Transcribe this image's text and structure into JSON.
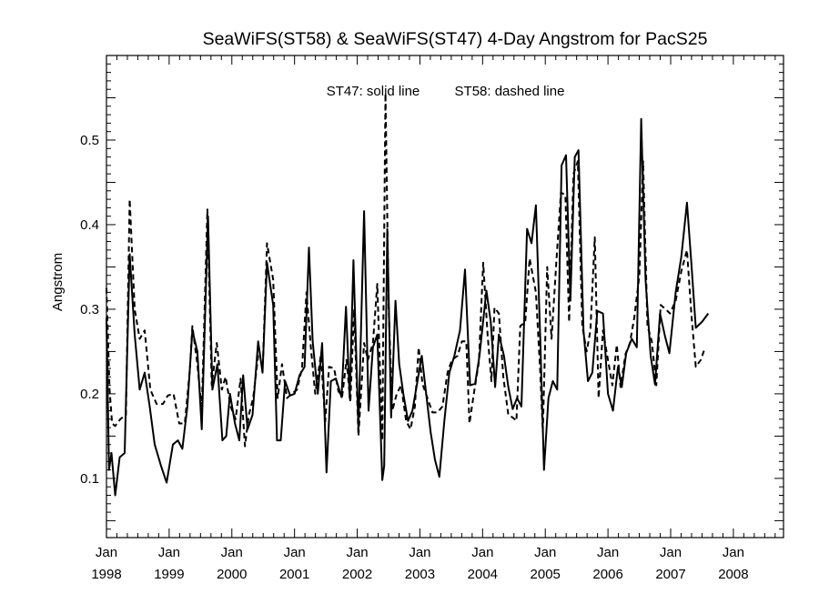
{
  "chart_data": {
    "type": "line",
    "title": "SeaWiFS(ST58) & SeaWiFS(ST47) 4-Day Angstrom for PacS25",
    "annotations": [
      "ST47: solid line",
      "ST58: dashed line"
    ],
    "ylabel": "Angstrom",
    "xlabel": "",
    "xlim": [
      1998.0,
      2008.8
    ],
    "ylim": [
      0.03,
      0.6
    ],
    "yticks": [
      0.1,
      0.2,
      0.3,
      0.4,
      0.5
    ],
    "xticks": [
      {
        "x": 1998,
        "month": "Jan",
        "year": "1998"
      },
      {
        "x": 1999,
        "month": "Jan",
        "year": "1999"
      },
      {
        "x": 2000,
        "month": "Jan",
        "year": "2000"
      },
      {
        "x": 2001,
        "month": "Jan",
        "year": "2001"
      },
      {
        "x": 2002,
        "month": "Jan",
        "year": "2002"
      },
      {
        "x": 2003,
        "month": "Jan",
        "year": "2003"
      },
      {
        "x": 2004,
        "month": "Jan",
        "year": "2004"
      },
      {
        "x": 2005,
        "month": "Jan",
        "year": "2005"
      },
      {
        "x": 2006,
        "month": "Jan",
        "year": "2006"
      },
      {
        "x": 2007,
        "month": "Jan",
        "year": "2007"
      },
      {
        "x": 2008,
        "month": "Jan",
        "year": "2008"
      }
    ],
    "grid": false,
    "series": [
      {
        "name": "ST47",
        "style": "solid",
        "color": "#000000",
        "points": [
          [
            1998.0,
            0.29
          ],
          [
            1998.04,
            0.11
          ],
          [
            1998.08,
            0.13
          ],
          [
            1998.14,
            0.08
          ],
          [
            1998.21,
            0.125
          ],
          [
            1998.29,
            0.13
          ],
          [
            1998.37,
            0.365
          ],
          [
            1998.45,
            0.27
          ],
          [
            1998.53,
            0.205
          ],
          [
            1998.61,
            0.225
          ],
          [
            1998.69,
            0.185
          ],
          [
            1998.77,
            0.14
          ],
          [
            1998.87,
            0.115
          ],
          [
            1998.96,
            0.095
          ],
          [
            1999.06,
            0.14
          ],
          [
            1999.14,
            0.145
          ],
          [
            1999.21,
            0.135
          ],
          [
            1999.29,
            0.185
          ],
          [
            1999.37,
            0.275
          ],
          [
            1999.45,
            0.25
          ],
          [
            1999.52,
            0.158
          ],
          [
            1999.62,
            0.41
          ],
          [
            1999.69,
            0.205
          ],
          [
            1999.77,
            0.235
          ],
          [
            1999.85,
            0.145
          ],
          [
            1999.91,
            0.15
          ],
          [
            1999.97,
            0.2
          ],
          [
            2000.05,
            0.165
          ],
          [
            2000.12,
            0.145
          ],
          [
            2000.18,
            0.222
          ],
          [
            2000.25,
            0.158
          ],
          [
            2000.33,
            0.175
          ],
          [
            2000.42,
            0.262
          ],
          [
            2000.49,
            0.225
          ],
          [
            2000.56,
            0.355
          ],
          [
            2000.66,
            0.305
          ],
          [
            2000.72,
            0.145
          ],
          [
            2000.78,
            0.145
          ],
          [
            2000.85,
            0.215
          ],
          [
            2000.93,
            0.198
          ],
          [
            2001.0,
            0.2
          ],
          [
            2001.08,
            0.222
          ],
          [
            2001.16,
            0.232
          ],
          [
            2001.23,
            0.373
          ],
          [
            2001.29,
            0.262
          ],
          [
            2001.37,
            0.2
          ],
          [
            2001.44,
            0.26
          ],
          [
            2001.51,
            0.107
          ],
          [
            2001.58,
            0.215
          ],
          [
            2001.66,
            0.218
          ],
          [
            2001.75,
            0.196
          ],
          [
            2001.82,
            0.303
          ],
          [
            2001.88,
            0.195
          ],
          [
            2001.94,
            0.358
          ],
          [
            2002.02,
            0.158
          ],
          [
            2002.11,
            0.416
          ],
          [
            2002.18,
            0.18
          ],
          [
            2002.25,
            0.255
          ],
          [
            2002.32,
            0.27
          ],
          [
            2002.4,
            0.098
          ],
          [
            2002.43,
            0.115
          ],
          [
            2002.48,
            0.395
          ],
          [
            2002.54,
            0.172
          ],
          [
            2002.61,
            0.31
          ],
          [
            2002.67,
            0.235
          ],
          [
            2002.74,
            0.198
          ],
          [
            2002.81,
            0.168
          ],
          [
            2002.88,
            0.18
          ],
          [
            2002.95,
            0.21
          ],
          [
            2003.03,
            0.245
          ],
          [
            2003.1,
            0.2
          ],
          [
            2003.17,
            0.155
          ],
          [
            2003.24,
            0.122
          ],
          [
            2003.31,
            0.102
          ],
          [
            2003.39,
            0.168
          ],
          [
            2003.47,
            0.225
          ],
          [
            2003.55,
            0.245
          ],
          [
            2003.64,
            0.275
          ],
          [
            2003.72,
            0.347
          ],
          [
            2003.8,
            0.21
          ],
          [
            2003.88,
            0.212
          ],
          [
            2003.95,
            0.245
          ],
          [
            2004.06,
            0.322
          ],
          [
            2004.13,
            0.285
          ],
          [
            2004.2,
            0.208
          ],
          [
            2004.26,
            0.27
          ],
          [
            2004.34,
            0.245
          ],
          [
            2004.41,
            0.208
          ],
          [
            2004.48,
            0.182
          ],
          [
            2004.55,
            0.195
          ],
          [
            2004.62,
            0.185
          ],
          [
            2004.71,
            0.395
          ],
          [
            2004.78,
            0.378
          ],
          [
            2004.85,
            0.423
          ],
          [
            2004.92,
            0.265
          ],
          [
            2004.98,
            0.11
          ],
          [
            2005.05,
            0.195
          ],
          [
            2005.12,
            0.215
          ],
          [
            2005.19,
            0.205
          ],
          [
            2005.26,
            0.47
          ],
          [
            2005.33,
            0.482
          ],
          [
            2005.4,
            0.31
          ],
          [
            2005.47,
            0.48
          ],
          [
            2005.53,
            0.488
          ],
          [
            2005.61,
            0.275
          ],
          [
            2005.68,
            0.215
          ],
          [
            2005.75,
            0.225
          ],
          [
            2005.83,
            0.298
          ],
          [
            2005.92,
            0.295
          ],
          [
            2006.0,
            0.2
          ],
          [
            2006.08,
            0.18
          ],
          [
            2006.16,
            0.232
          ],
          [
            2006.22,
            0.208
          ],
          [
            2006.29,
            0.248
          ],
          [
            2006.38,
            0.265
          ],
          [
            2006.46,
            0.255
          ],
          [
            2006.53,
            0.525
          ],
          [
            2006.6,
            0.335
          ],
          [
            2006.68,
            0.245
          ],
          [
            2006.75,
            0.211
          ],
          [
            2006.83,
            0.295
          ],
          [
            2006.91,
            0.268
          ],
          [
            2006.98,
            0.248
          ],
          [
            2007.08,
            0.32
          ],
          [
            2007.17,
            0.362
          ],
          [
            2007.26,
            0.426
          ],
          [
            2007.33,
            0.355
          ],
          [
            2007.4,
            0.278
          ],
          [
            2007.5,
            0.285
          ],
          [
            2007.6,
            0.295
          ]
        ]
      },
      {
        "name": "ST58",
        "style": "dashed",
        "color": "#000000",
        "points": [
          [
            1998.0,
            0.325
          ],
          [
            1998.05,
            0.205
          ],
          [
            1998.09,
            0.165
          ],
          [
            1998.14,
            0.162
          ],
          [
            1998.22,
            0.17
          ],
          [
            1998.31,
            0.175
          ],
          [
            1998.37,
            0.43
          ],
          [
            1998.45,
            0.3
          ],
          [
            1998.53,
            0.265
          ],
          [
            1998.61,
            0.275
          ],
          [
            1998.7,
            0.205
          ],
          [
            1998.8,
            0.188
          ],
          [
            1998.9,
            0.188
          ],
          [
            1998.98,
            0.198
          ],
          [
            1999.07,
            0.2
          ],
          [
            1999.16,
            0.165
          ],
          [
            1999.25,
            0.165
          ],
          [
            1999.33,
            0.228
          ],
          [
            1999.37,
            0.28
          ],
          [
            1999.45,
            0.235
          ],
          [
            1999.52,
            0.18
          ],
          [
            1999.61,
            0.418
          ],
          [
            1999.68,
            0.21
          ],
          [
            1999.76,
            0.26
          ],
          [
            1999.84,
            0.205
          ],
          [
            1999.9,
            0.22
          ],
          [
            1999.98,
            0.185
          ],
          [
            2000.06,
            0.17
          ],
          [
            2000.14,
            0.218
          ],
          [
            2000.21,
            0.138
          ],
          [
            2000.27,
            0.175
          ],
          [
            2000.34,
            0.195
          ],
          [
            2000.42,
            0.245
          ],
          [
            2000.5,
            0.245
          ],
          [
            2000.56,
            0.378
          ],
          [
            2000.66,
            0.335
          ],
          [
            2000.73,
            0.195
          ],
          [
            2000.8,
            0.235
          ],
          [
            2000.88,
            0.195
          ],
          [
            2000.96,
            0.2
          ],
          [
            2001.04,
            0.205
          ],
          [
            2001.12,
            0.23
          ],
          [
            2001.19,
            0.32
          ],
          [
            2001.26,
            0.255
          ],
          [
            2001.33,
            0.2
          ],
          [
            2001.42,
            0.246
          ],
          [
            2001.49,
            0.167
          ],
          [
            2001.55,
            0.232
          ],
          [
            2001.63,
            0.23
          ],
          [
            2001.7,
            0.203
          ],
          [
            2001.76,
            0.197
          ],
          [
            2001.83,
            0.24
          ],
          [
            2001.89,
            0.19
          ],
          [
            2001.95,
            0.3
          ],
          [
            2002.02,
            0.15
          ],
          [
            2002.11,
            0.26
          ],
          [
            2002.17,
            0.24
          ],
          [
            2002.25,
            0.26
          ],
          [
            2002.32,
            0.33
          ],
          [
            2002.4,
            0.145
          ],
          [
            2002.45,
            0.555
          ],
          [
            2002.5,
            0.305
          ],
          [
            2002.56,
            0.18
          ],
          [
            2002.63,
            0.2
          ],
          [
            2002.7,
            0.21
          ],
          [
            2002.78,
            0.168
          ],
          [
            2002.85,
            0.158
          ],
          [
            2002.92,
            0.185
          ],
          [
            2002.98,
            0.255
          ],
          [
            2003.04,
            0.212
          ],
          [
            2003.12,
            0.195
          ],
          [
            2003.2,
            0.178
          ],
          [
            2003.28,
            0.178
          ],
          [
            2003.36,
            0.185
          ],
          [
            2003.44,
            0.225
          ],
          [
            2003.51,
            0.24
          ],
          [
            2003.6,
            0.245
          ],
          [
            2003.67,
            0.262
          ],
          [
            2003.74,
            0.262
          ],
          [
            2003.79,
            0.165
          ],
          [
            2003.86,
            0.2
          ],
          [
            2003.94,
            0.237
          ],
          [
            2004.01,
            0.355
          ],
          [
            2004.08,
            0.27
          ],
          [
            2004.14,
            0.215
          ],
          [
            2004.19,
            0.302
          ],
          [
            2004.26,
            0.295
          ],
          [
            2004.33,
            0.22
          ],
          [
            2004.41,
            0.175
          ],
          [
            2004.48,
            0.172
          ],
          [
            2004.54,
            0.168
          ],
          [
            2004.6,
            0.28
          ],
          [
            2004.68,
            0.285
          ],
          [
            2004.75,
            0.36
          ],
          [
            2004.85,
            0.32
          ],
          [
            2004.92,
            0.225
          ],
          [
            2004.96,
            0.155
          ],
          [
            2005.03,
            0.35
          ],
          [
            2005.1,
            0.265
          ],
          [
            2005.18,
            0.36
          ],
          [
            2005.25,
            0.438
          ],
          [
            2005.32,
            0.435
          ],
          [
            2005.38,
            0.285
          ],
          [
            2005.45,
            0.46
          ],
          [
            2005.52,
            0.475
          ],
          [
            2005.59,
            0.28
          ],
          [
            2005.66,
            0.25
          ],
          [
            2005.72,
            0.275
          ],
          [
            2005.79,
            0.385
          ],
          [
            2005.85,
            0.195
          ],
          [
            2005.92,
            0.275
          ],
          [
            2006.0,
            0.24
          ],
          [
            2006.07,
            0.21
          ],
          [
            2006.14,
            0.258
          ],
          [
            2006.2,
            0.208
          ],
          [
            2006.28,
            0.247
          ],
          [
            2006.35,
            0.26
          ],
          [
            2006.42,
            0.29
          ],
          [
            2006.5,
            0.34
          ],
          [
            2006.56,
            0.475
          ],
          [
            2006.63,
            0.28
          ],
          [
            2006.7,
            0.262
          ],
          [
            2006.77,
            0.21
          ],
          [
            2006.84,
            0.305
          ],
          [
            2006.92,
            0.3
          ],
          [
            2006.99,
            0.295
          ],
          [
            2007.08,
            0.31
          ],
          [
            2007.17,
            0.345
          ],
          [
            2007.26,
            0.37
          ],
          [
            2007.33,
            0.295
          ],
          [
            2007.4,
            0.232
          ],
          [
            2007.48,
            0.24
          ],
          [
            2007.55,
            0.255
          ]
        ]
      }
    ]
  }
}
